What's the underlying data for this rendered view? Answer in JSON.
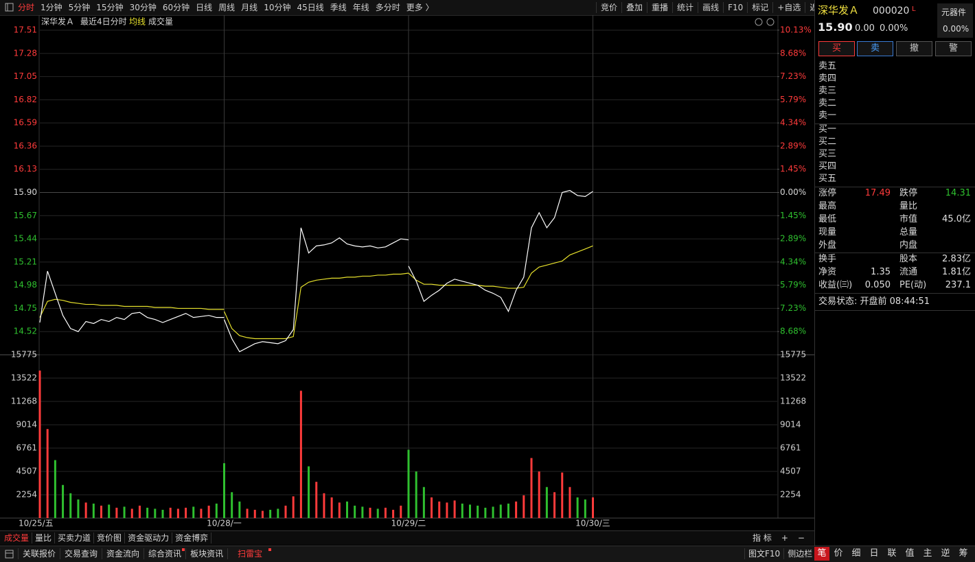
{
  "toolbar": {
    "periods": [
      "分时",
      "1分钟",
      "5分钟",
      "15分钟",
      "30分钟",
      "60分钟",
      "日线",
      "周线",
      "月线",
      "10分钟",
      "45日线",
      "季线",
      "年线",
      "多分时",
      "更多 〉"
    ],
    "tools": [
      "竞价",
      "叠加",
      "重播",
      "统计",
      "画线",
      "F10",
      "标记",
      "+自选",
      "返回"
    ]
  },
  "chart_header": {
    "name": "深华发Ａ",
    "period": "最近4日分时",
    "avg_label": "均线",
    "volume_label": "成交量"
  },
  "chart_data": {
    "type": "line",
    "categories": [
      "10/25/五",
      "10/28/一",
      "10/29/二",
      "10/30/三"
    ],
    "price_color": "#ffffff",
    "avg_color": "#e8e22c",
    "up_color": "#ff3b3b",
    "down_color": "#2fc02f",
    "grid": true,
    "ylim": [
      14.29,
      17.66
    ],
    "yticks": [
      17.51,
      17.28,
      17.05,
      16.82,
      16.59,
      16.36,
      16.13,
      {
        "value": 15.9,
        "label": "15.90"
      },
      15.67,
      15.44,
      15.21,
      14.98,
      14.75,
      14.52
    ],
    "y2lim": [
      -10.13,
      11.07
    ],
    "y2ticks": [
      {
        "value": 10.13,
        "label": "10.13%"
      },
      {
        "value": 8.68,
        "label": "8.68%"
      },
      {
        "value": 7.23,
        "label": "7.23%"
      },
      {
        "value": 5.79,
        "label": "5.79%"
      },
      {
        "value": 4.34,
        "label": "4.34%"
      },
      {
        "value": 2.89,
        "label": "2.89%"
      },
      {
        "value": 1.45,
        "label": "1.45%"
      },
      {
        "value": 0,
        "label": "0.00%"
      },
      {
        "value": -1.45,
        "label": "1.45%"
      },
      {
        "value": -2.89,
        "label": "2.89%"
      },
      {
        "value": -4.34,
        "label": "4.34%"
      },
      {
        "value": -5.79,
        "label": "5.79%"
      },
      {
        "value": -7.23,
        "label": "7.23%"
      },
      {
        "value": -8.68,
        "label": "8.68%"
      }
    ],
    "volume_ylim": [
      0,
      15775
    ],
    "volume_yticks": [
      15775,
      13522,
      11268,
      9014,
      6761,
      4507,
      2254
    ],
    "sessions": [
      {
        "price": [
          14.61,
          15.12,
          14.9,
          14.68,
          14.55,
          14.52,
          14.62,
          14.6,
          14.64,
          14.62,
          14.66,
          14.64,
          14.7,
          14.71,
          14.66,
          14.64,
          14.61,
          14.64,
          14.67,
          14.7,
          14.66,
          14.67,
          14.68,
          14.66,
          14.66
        ],
        "avg": [
          14.66,
          14.82,
          14.84,
          14.83,
          14.81,
          14.8,
          14.79,
          14.79,
          14.78,
          14.78,
          14.78,
          14.77,
          14.77,
          14.77,
          14.77,
          14.76,
          14.76,
          14.76,
          14.75,
          14.75,
          14.75,
          14.75,
          14.74,
          14.74,
          14.74
        ],
        "volume": [
          14250,
          8600,
          5600,
          3200,
          2400,
          1800,
          1500,
          1400,
          1200,
          1300,
          1000,
          1100,
          900,
          1200,
          1000,
          900,
          800,
          1000,
          900,
          1000,
          1100,
          900,
          1200,
          1400,
          2000
        ]
      },
      {
        "price": [
          14.64,
          14.45,
          14.32,
          14.36,
          14.4,
          14.42,
          14.41,
          14.4,
          14.43,
          14.54,
          15.55,
          15.3,
          15.37,
          15.38,
          15.4,
          15.45,
          15.39,
          15.37,
          15.36,
          15.37,
          15.35,
          15.36,
          15.4,
          15.44,
          15.43
        ],
        "avg": [
          14.72,
          14.55,
          14.48,
          14.46,
          14.45,
          14.45,
          14.45,
          14.45,
          14.45,
          14.47,
          14.96,
          15.01,
          15.03,
          15.04,
          15.05,
          15.05,
          15.06,
          15.06,
          15.07,
          15.07,
          15.08,
          15.08,
          15.09,
          15.09,
          15.1
        ],
        "volume": [
          5300,
          2500,
          1600,
          900,
          800,
          700,
          800,
          900,
          1200,
          2100,
          12300,
          5000,
          3500,
          2400,
          2000,
          1500,
          1600,
          1200,
          1100,
          1000,
          900,
          1000,
          800,
          1200,
          1400
        ]
      },
      {
        "price": [
          15.17,
          15.02,
          14.82,
          14.88,
          14.93,
          15.0,
          15.04,
          15.02,
          15.0,
          14.98,
          14.93,
          14.9,
          14.86,
          14.72,
          14.93,
          15.06,
          15.55,
          15.7,
          15.55,
          15.65,
          15.9,
          15.92,
          15.87,
          15.86,
          15.91
        ],
        "avg": [
          15.1,
          15.03,
          14.99,
          14.99,
          14.98,
          14.98,
          14.98,
          14.98,
          14.98,
          14.98,
          14.97,
          14.97,
          14.96,
          14.95,
          14.95,
          14.96,
          15.1,
          15.16,
          15.18,
          15.2,
          15.22,
          15.28,
          15.31,
          15.34,
          15.37
        ],
        "volume": [
          6600,
          4500,
          3000,
          2000,
          1600,
          1500,
          1700,
          1400,
          1300,
          1200,
          1000,
          1100,
          1300,
          1400,
          1600,
          2200,
          5800,
          4500,
          3000,
          2500,
          4400,
          3000,
          2000,
          1800,
          2000
        ]
      }
    ]
  },
  "quote": {
    "name": "深华发Ａ",
    "code": "000020",
    "flag": "L",
    "price": "15.90",
    "change": "0.00",
    "change_pct": "0.00%",
    "sector": "元器件",
    "sector_pct": "0.00%"
  },
  "trade_buttons": [
    "买",
    "卖",
    "撤",
    "警"
  ],
  "asks": [
    "卖五",
    "卖四",
    "卖三",
    "卖二",
    "卖一"
  ],
  "bids": [
    "买一",
    "买二",
    "买三",
    "买四",
    "买五"
  ],
  "stats_a": [
    [
      {
        "label": "涨停",
        "value": "17.49",
        "color": "#ff3b3b"
      },
      {
        "label": "跌停",
        "value": "14.31",
        "color": "#2fc02f"
      }
    ],
    [
      {
        "label": "最高"
      },
      {
        "label": "量比"
      }
    ],
    [
      {
        "label": "最低"
      },
      {
        "label": "市值",
        "value": "45.0亿"
      }
    ],
    [
      {
        "label": "现量"
      },
      {
        "label": "总量"
      }
    ],
    [
      {
        "label": "外盘"
      },
      {
        "label": "内盘"
      }
    ]
  ],
  "stats_b": [
    [
      {
        "label": "换手"
      },
      {
        "label": "股本",
        "value": "2.83亿"
      }
    ],
    [
      {
        "label": "净资",
        "value": "1.35"
      },
      {
        "label": "流通",
        "value": "1.81亿"
      }
    ],
    [
      {
        "label": "收益(㈢)",
        "value": "0.050"
      },
      {
        "label": "PE(动)",
        "value": "237.1"
      }
    ]
  ],
  "trade_status": "交易状态: 开盘前 08:44:51",
  "indicator_tabs": [
    "成交量",
    "量比",
    "买卖力道",
    "竞价图",
    "资金驱动力",
    "资金博弈"
  ],
  "indicator_tools": [
    "指 标",
    "+",
    "−"
  ],
  "bottom_bar": {
    "left": [
      "关联报价",
      "交易查询",
      "资金流向",
      "综合资讯",
      "板块资讯",
      "扫雷宝"
    ],
    "right": [
      "图文F10",
      "侧边栏"
    ],
    "side_tabs": [
      "笔",
      "价",
      "细",
      "日",
      "联",
      "值",
      "主",
      "逆",
      "筹"
    ]
  }
}
